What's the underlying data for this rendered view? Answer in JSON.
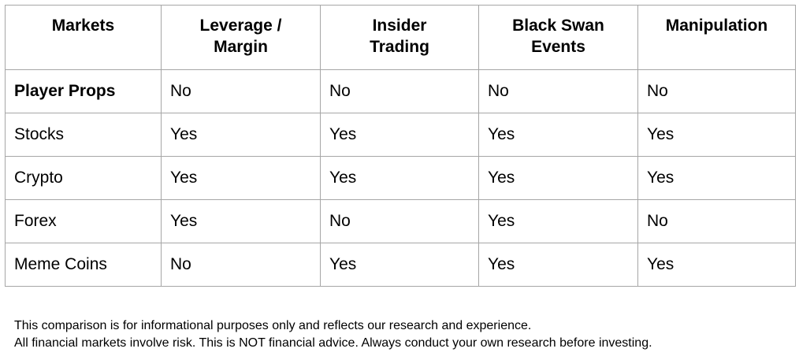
{
  "colors": {
    "background": "#ffffff",
    "border": "#a6a6a6",
    "text": "#000000"
  },
  "table": {
    "headers": [
      "Markets",
      "Leverage /\nMargin",
      "Insider\nTrading",
      "Black Swan\nEvents",
      "Manipulation"
    ],
    "rows": [
      {
        "market": "Player Props",
        "bold": true,
        "values": [
          "No",
          "No",
          "No",
          "No"
        ]
      },
      {
        "market": "Stocks",
        "bold": false,
        "values": [
          "Yes",
          "Yes",
          "Yes",
          "Yes"
        ]
      },
      {
        "market": "Crypto",
        "bold": false,
        "values": [
          "Yes",
          "Yes",
          "Yes",
          "Yes"
        ]
      },
      {
        "market": "Forex",
        "bold": false,
        "values": [
          "Yes",
          "No",
          "Yes",
          "No"
        ]
      },
      {
        "market": "Meme Coins",
        "bold": false,
        "values": [
          "No",
          "Yes",
          "Yes",
          "Yes"
        ]
      }
    ]
  },
  "disclaimer": {
    "line1": "This comparison is for informational purposes only and reflects our research and experience.",
    "line2": "All financial markets involve risk. This is NOT financial advice. Always conduct your own research before investing."
  },
  "chart_data": {
    "type": "table",
    "title": "Markets comparison",
    "columns": [
      "Markets",
      "Leverage / Margin",
      "Insider Trading",
      "Black Swan Events",
      "Manipulation"
    ],
    "rows": [
      [
        "Player Props",
        "No",
        "No",
        "No",
        "No"
      ],
      [
        "Stocks",
        "Yes",
        "Yes",
        "Yes",
        "Yes"
      ],
      [
        "Crypto",
        "Yes",
        "Yes",
        "Yes",
        "Yes"
      ],
      [
        "Forex",
        "Yes",
        "No",
        "Yes",
        "No"
      ],
      [
        "Meme Coins",
        "No",
        "Yes",
        "Yes",
        "Yes"
      ]
    ],
    "layout": {
      "header_row_bold": true,
      "first_data_row_bold_label": "Player Props",
      "grid": true
    }
  }
}
